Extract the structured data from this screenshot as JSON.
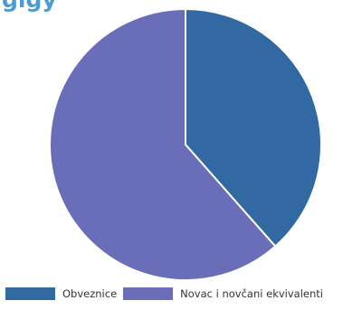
{
  "chart_data": {
    "type": "pie",
    "title": "glgy",
    "categories": [
      "Obveznice",
      "Novac i novčani ekvivalenti"
    ],
    "values": [
      38.5,
      61.5
    ],
    "colors": [
      "#3269a3",
      "#6a6db8"
    ],
    "start_angle_deg": 0,
    "direction": "clockwise",
    "legend_position": "bottom"
  }
}
